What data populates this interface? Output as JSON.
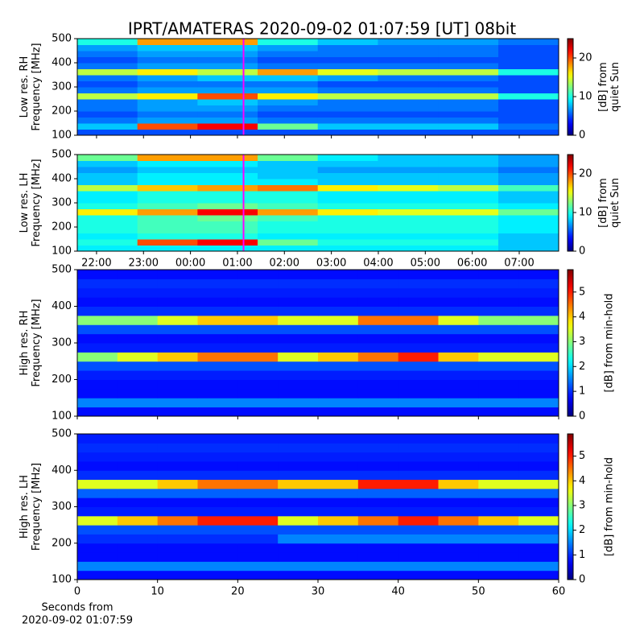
{
  "title": "IPRT/AMATERAS 2020-09-02 01:07:59 [UT]   08bit",
  "chart_data": [
    {
      "type": "heatmap",
      "ylabel": [
        "Low res. RH",
        "Frequency [MHz]"
      ],
      "colorbar_label": [
        "[dB] from",
        "quiet Sun"
      ],
      "colormap": "jet",
      "xlim": [
        21.59,
        31.84
      ],
      "ylim": [
        100,
        500
      ],
      "clim": [
        0,
        25
      ],
      "yticks": [
        100,
        200,
        300,
        400,
        500
      ],
      "cticks": [
        0,
        10,
        20
      ],
      "xticks": [
        {
          "value": 22,
          "label": "22:00"
        },
        {
          "value": 23,
          "label": "23:00"
        },
        {
          "value": 24,
          "label": "00:00"
        },
        {
          "value": 25,
          "label": "01:00"
        },
        {
          "value": 26,
          "label": "02:00"
        },
        {
          "value": 27,
          "label": "03:00"
        },
        {
          "value": 28,
          "label": "04:00"
        },
        {
          "value": 29,
          "label": "05:00"
        },
        {
          "value": 30,
          "label": "06:00"
        },
        {
          "value": 31,
          "label": "07:00"
        }
      ],
      "show_xticklabels": false,
      "marker_x": 25.13,
      "marker_color": "#ff00ff",
      "x": [
        22.23,
        23.51,
        24.79,
        26.07,
        27.35,
        28.63,
        29.91,
        31.2
      ],
      "y": [
        112.5,
        137.5,
        162.5,
        187.5,
        212.5,
        237.5,
        262.5,
        287.5,
        312.5,
        337.5,
        362.5,
        387.5,
        412.5,
        437.5,
        462.5,
        487.5
      ],
      "z": [
        [
          5,
          5,
          5,
          5,
          5,
          5,
          5,
          5
        ],
        [
          8,
          20,
          22,
          12,
          8,
          8,
          8,
          6
        ],
        [
          6,
          7,
          7,
          6,
          6,
          6,
          6,
          5
        ],
        [
          5,
          6,
          6,
          5,
          5,
          5,
          5,
          5
        ],
        [
          6,
          7,
          7,
          6,
          6,
          6,
          6,
          5
        ],
        [
          6,
          7,
          8,
          7,
          6,
          6,
          6,
          5
        ],
        [
          14,
          16,
          20,
          16,
          14,
          14,
          14,
          10
        ],
        [
          6,
          7,
          7,
          7,
          6,
          6,
          6,
          5
        ],
        [
          5,
          6,
          6,
          6,
          5,
          5,
          5,
          5
        ],
        [
          6,
          7,
          8,
          8,
          7,
          6,
          6,
          5
        ],
        [
          14,
          16,
          14,
          18,
          15,
          14,
          14,
          10
        ],
        [
          6,
          7,
          7,
          6,
          6,
          6,
          6,
          5
        ],
        [
          5,
          6,
          6,
          5,
          5,
          5,
          5,
          5
        ],
        [
          6,
          7,
          7,
          6,
          6,
          6,
          6,
          5
        ],
        [
          7,
          8,
          8,
          7,
          6,
          6,
          6,
          5
        ],
        [
          10,
          18,
          18,
          10,
          8,
          7,
          7,
          6
        ]
      ]
    },
    {
      "type": "heatmap",
      "ylabel": [
        "Low res. LH",
        "Frequency [MHz]"
      ],
      "colorbar_label": [
        "[dB] from",
        "quiet Sun"
      ],
      "colormap": "jet",
      "xlim": [
        21.59,
        31.84
      ],
      "ylim": [
        100,
        500
      ],
      "clim": [
        0,
        25
      ],
      "yticks": [
        100,
        200,
        300,
        400,
        500
      ],
      "cticks": [
        0,
        10,
        20
      ],
      "xticks": [
        {
          "value": 22,
          "label": "22:00"
        },
        {
          "value": 23,
          "label": "23:00"
        },
        {
          "value": 24,
          "label": "00:00"
        },
        {
          "value": 25,
          "label": "01:00"
        },
        {
          "value": 26,
          "label": "02:00"
        },
        {
          "value": 27,
          "label": "03:00"
        },
        {
          "value": 28,
          "label": "04:00"
        },
        {
          "value": 29,
          "label": "05:00"
        },
        {
          "value": 30,
          "label": "06:00"
        },
        {
          "value": 31,
          "label": "07:00"
        }
      ],
      "show_xticklabels": true,
      "marker_x": 25.13,
      "marker_color": "#ff00ff",
      "x": [
        22.23,
        23.51,
        24.79,
        26.07,
        27.35,
        28.63,
        29.91,
        31.2
      ],
      "y": [
        112.5,
        137.5,
        162.5,
        187.5,
        212.5,
        237.5,
        262.5,
        287.5,
        312.5,
        337.5,
        362.5,
        387.5,
        412.5,
        437.5,
        462.5,
        487.5
      ],
      "z": [
        [
          9,
          9,
          9,
          9,
          9,
          9,
          9,
          8
        ],
        [
          10,
          20,
          22,
          12,
          10,
          10,
          10,
          8
        ],
        [
          9,
          10,
          10,
          9,
          9,
          9,
          9,
          8
        ],
        [
          10,
          11,
          11,
          10,
          10,
          10,
          10,
          9
        ],
        [
          10,
          11,
          11,
          10,
          10,
          10,
          10,
          9
        ],
        [
          10,
          11,
          12,
          11,
          10,
          10,
          10,
          9
        ],
        [
          16,
          18,
          22,
          18,
          16,
          15,
          15,
          12
        ],
        [
          10,
          11,
          12,
          11,
          10,
          10,
          10,
          9
        ],
        [
          9,
          10,
          10,
          10,
          9,
          9,
          9,
          8
        ],
        [
          9,
          10,
          10,
          10,
          9,
          9,
          9,
          8
        ],
        [
          14,
          17,
          18,
          19,
          16,
          15,
          14,
          11
        ],
        [
          8,
          9,
          9,
          9,
          8,
          8,
          8,
          7
        ],
        [
          8,
          9,
          9,
          8,
          8,
          8,
          8,
          7
        ],
        [
          7,
          8,
          8,
          8,
          7,
          7,
          7,
          6
        ],
        [
          8,
          9,
          9,
          8,
          8,
          8,
          8,
          7
        ],
        [
          12,
          18,
          18,
          12,
          9,
          8,
          8,
          7
        ]
      ]
    },
    {
      "type": "heatmap",
      "ylabel": [
        "High res. RH",
        "Frequency [MHz]"
      ],
      "colorbar_label": [
        "[dB] from min-hold"
      ],
      "colormap": "jet",
      "xlim": [
        0,
        60
      ],
      "ylim": [
        100,
        500
      ],
      "clim": [
        0,
        5.9
      ],
      "yticks": [
        100,
        200,
        300,
        400,
        500
      ],
      "cticks": [
        0,
        1,
        2,
        3,
        4,
        5
      ],
      "xticks": [
        0,
        10,
        20,
        30,
        40,
        50,
        60
      ],
      "show_xticklabels": false,
      "x": [
        2.5,
        7.5,
        12.5,
        17.5,
        22.5,
        27.5,
        32.5,
        37.5,
        42.5,
        47.5,
        52.5,
        57.5
      ],
      "y": [
        112.5,
        137.5,
        162.5,
        187.5,
        212.5,
        237.5,
        262.5,
        287.5,
        312.5,
        337.5,
        362.5,
        387.5,
        412.5,
        437.5,
        462.5,
        487.5
      ],
      "z": [
        [
          0.8,
          0.8,
          0.8,
          0.8,
          0.8,
          0.8,
          0.8,
          0.8,
          0.8,
          0.8,
          0.8,
          0.8
        ],
        [
          1.5,
          1.5,
          1.5,
          1.5,
          1.5,
          1.5,
          1.5,
          1.5,
          1.5,
          1.5,
          1.5,
          1.5
        ],
        [
          0.8,
          0.8,
          0.8,
          0.8,
          0.8,
          0.8,
          0.8,
          0.8,
          0.8,
          0.8,
          0.8,
          0.8
        ],
        [
          0.8,
          0.8,
          0.8,
          0.8,
          0.8,
          0.8,
          0.8,
          0.8,
          0.8,
          0.8,
          0.8,
          0.8
        ],
        [
          0.9,
          0.9,
          0.9,
          0.9,
          0.9,
          0.9,
          0.9,
          0.9,
          0.9,
          0.9,
          0.9,
          0.9
        ],
        [
          1.2,
          1.2,
          1.2,
          1.2,
          1.2,
          1.2,
          1.2,
          1.2,
          1.2,
          1.2,
          1.2,
          1.2
        ],
        [
          3,
          3.5,
          4,
          4.5,
          4.5,
          3.5,
          4,
          4.5,
          5,
          4,
          3.5,
          3.5
        ],
        [
          0.9,
          0.9,
          0.9,
          0.9,
          0.9,
          0.9,
          0.9,
          0.9,
          0.9,
          0.9,
          0.9,
          0.9
        ],
        [
          0.8,
          0.8,
          0.8,
          0.8,
          0.8,
          0.8,
          0.8,
          0.8,
          0.8,
          0.8,
          0.8,
          0.8
        ],
        [
          1.2,
          1.2,
          1.2,
          1.2,
          1.2,
          1.2,
          1.2,
          1.2,
          1.2,
          1.2,
          1.2,
          1.2
        ],
        [
          3,
          3,
          3.5,
          4,
          4,
          3.5,
          3.5,
          4.5,
          4.5,
          3.5,
          3,
          3
        ],
        [
          1,
          1,
          1,
          1,
          1,
          1,
          1,
          1,
          1,
          1,
          1,
          1
        ],
        [
          0.8,
          0.8,
          0.8,
          0.8,
          0.8,
          0.8,
          0.8,
          0.8,
          0.8,
          0.8,
          0.8,
          0.8
        ],
        [
          0.9,
          0.9,
          0.9,
          0.9,
          0.9,
          0.9,
          0.9,
          0.9,
          0.9,
          0.9,
          0.9,
          0.9
        ],
        [
          1,
          1,
          1,
          1,
          1,
          1,
          1,
          1,
          1,
          1,
          1,
          1
        ],
        [
          0.8,
          0.8,
          0.8,
          0.8,
          0.8,
          0.8,
          0.8,
          0.8,
          0.8,
          0.8,
          0.8,
          0.8
        ]
      ]
    },
    {
      "type": "heatmap",
      "ylabel": [
        "High res. LH",
        "Frequency [MHz]"
      ],
      "colorbar_label": [
        "[dB] from min-hold"
      ],
      "colormap": "jet",
      "xlabel": [
        "Seconds from",
        "2020-09-02 01:07:59"
      ],
      "xlim": [
        0,
        60
      ],
      "ylim": [
        100,
        500
      ],
      "clim": [
        0,
        5.9
      ],
      "yticks": [
        100,
        200,
        300,
        400,
        500
      ],
      "cticks": [
        0,
        1,
        2,
        3,
        4,
        5
      ],
      "xticks": [
        0,
        10,
        20,
        30,
        40,
        50,
        60
      ],
      "show_xticklabels": true,
      "x": [
        2.5,
        7.5,
        12.5,
        17.5,
        22.5,
        27.5,
        32.5,
        37.5,
        42.5,
        47.5,
        52.5,
        57.5
      ],
      "y": [
        112.5,
        137.5,
        162.5,
        187.5,
        212.5,
        237.5,
        262.5,
        287.5,
        312.5,
        337.5,
        362.5,
        387.5,
        412.5,
        437.5,
        462.5,
        487.5
      ],
      "z": [
        [
          0.8,
          0.8,
          0.8,
          0.8,
          0.8,
          0.8,
          0.8,
          0.8,
          0.8,
          0.8,
          0.8,
          0.8
        ],
        [
          1.5,
          1.5,
          1.5,
          1.5,
          1.5,
          1.5,
          1.5,
          1.5,
          1.5,
          1.5,
          1.5,
          1.5
        ],
        [
          0.8,
          0.8,
          0.8,
          0.8,
          0.8,
          0.8,
          0.8,
          0.8,
          0.8,
          0.8,
          0.8,
          0.8
        ],
        [
          0.8,
          0.8,
          0.8,
          0.8,
          0.8,
          0.8,
          0.8,
          0.8,
          0.8,
          0.8,
          0.8,
          0.8
        ],
        [
          1,
          1,
          1,
          1,
          1,
          1.5,
          1.5,
          1.5,
          1.5,
          1.5,
          1.5,
          1.5
        ],
        [
          1.2,
          1.2,
          1.2,
          1.2,
          1.2,
          1.2,
          1.2,
          1.2,
          1.2,
          1.2,
          1.2,
          1.2
        ],
        [
          3.5,
          4,
          4.5,
          5,
          5,
          3.5,
          4,
          4.5,
          5,
          4.5,
          4,
          3.5
        ],
        [
          0.9,
          0.9,
          0.9,
          0.9,
          0.9,
          0.9,
          0.9,
          0.9,
          0.9,
          0.9,
          0.9,
          0.9
        ],
        [
          0.8,
          0.8,
          0.8,
          0.8,
          0.8,
          0.8,
          0.8,
          0.8,
          0.8,
          0.8,
          0.8,
          0.8
        ],
        [
          1.3,
          1.3,
          1.3,
          1.3,
          1.3,
          1.3,
          1.3,
          1.3,
          1.3,
          1.3,
          1.3,
          1.3
        ],
        [
          3.5,
          3.5,
          4,
          4.5,
          4.5,
          4,
          4,
          5,
          5,
          4,
          3.5,
          3.5
        ],
        [
          1,
          1,
          1,
          1,
          1,
          1,
          1,
          1,
          1,
          1,
          1,
          1
        ],
        [
          0.8,
          0.8,
          0.8,
          0.8,
          0.8,
          0.8,
          0.8,
          0.8,
          0.8,
          0.8,
          0.8,
          0.8
        ],
        [
          0.9,
          0.9,
          0.9,
          0.9,
          0.9,
          0.9,
          0.9,
          0.9,
          0.9,
          0.9,
          0.9,
          0.9
        ],
        [
          1,
          1,
          1,
          1,
          1,
          1,
          1,
          1,
          1,
          1,
          1,
          1
        ],
        [
          0.9,
          0.9,
          0.9,
          0.9,
          0.9,
          0.9,
          0.9,
          0.9,
          0.9,
          0.9,
          0.9,
          0.9
        ]
      ]
    }
  ]
}
